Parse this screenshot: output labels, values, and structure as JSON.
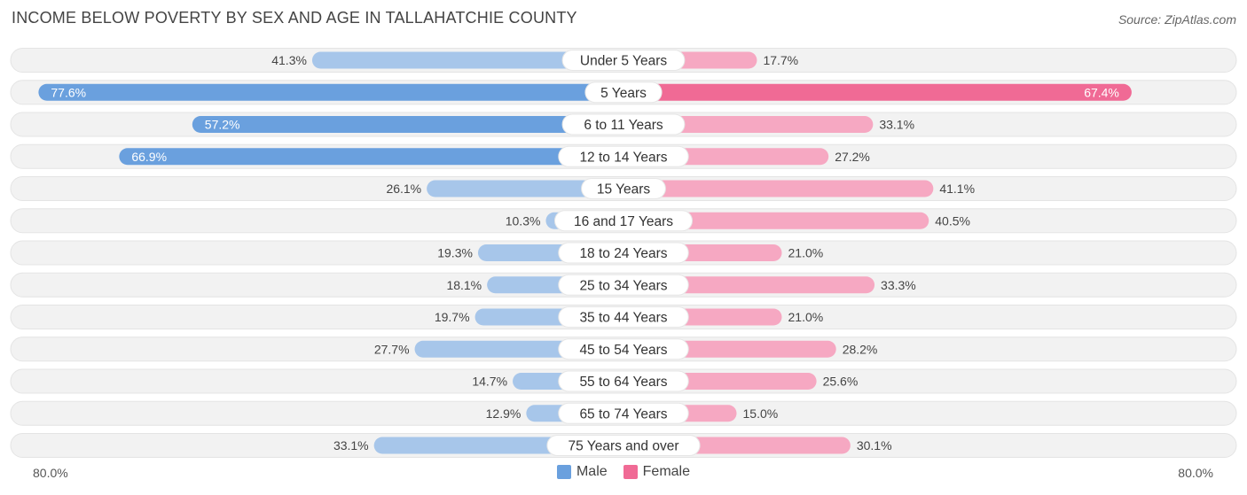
{
  "header": {
    "title": "INCOME BELOW POVERTY BY SEX AND AGE IN TALLAHATCHIE COUNTY",
    "source": "Source: ZipAtlas.com"
  },
  "axis": {
    "left_label": "80.0%",
    "right_label": "80.0%"
  },
  "legend": {
    "male_label": "Male",
    "female_label": "Female"
  },
  "colors": {
    "male_dark": "#6aa0de",
    "male_light": "#a7c6ea",
    "female_dark": "#f06a95",
    "female_light": "#f6a8c2",
    "row_bg": "#f2f2f2"
  },
  "chart_data": {
    "type": "bar",
    "orientation": "diverging-horizontal",
    "title": "INCOME BELOW POVERTY BY SEX AND AGE IN TALLAHATCHIE COUNTY",
    "xlim": [
      -80,
      80
    ],
    "unit": "%",
    "categories": [
      "Under 5 Years",
      "5 Years",
      "6 to 11 Years",
      "12 to 14 Years",
      "15 Years",
      "16 and 17 Years",
      "18 to 24 Years",
      "25 to 34 Years",
      "35 to 44 Years",
      "45 to 54 Years",
      "55 to 64 Years",
      "65 to 74 Years",
      "75 Years and over"
    ],
    "series": [
      {
        "name": "Male",
        "values": [
          41.3,
          77.6,
          57.2,
          66.9,
          26.1,
          10.3,
          19.3,
          18.1,
          19.7,
          27.7,
          14.7,
          12.9,
          33.1
        ]
      },
      {
        "name": "Female",
        "values": [
          17.7,
          67.4,
          33.1,
          27.2,
          41.1,
          40.5,
          21.0,
          33.3,
          21.0,
          28.2,
          25.6,
          15.0,
          30.1
        ]
      }
    ]
  }
}
